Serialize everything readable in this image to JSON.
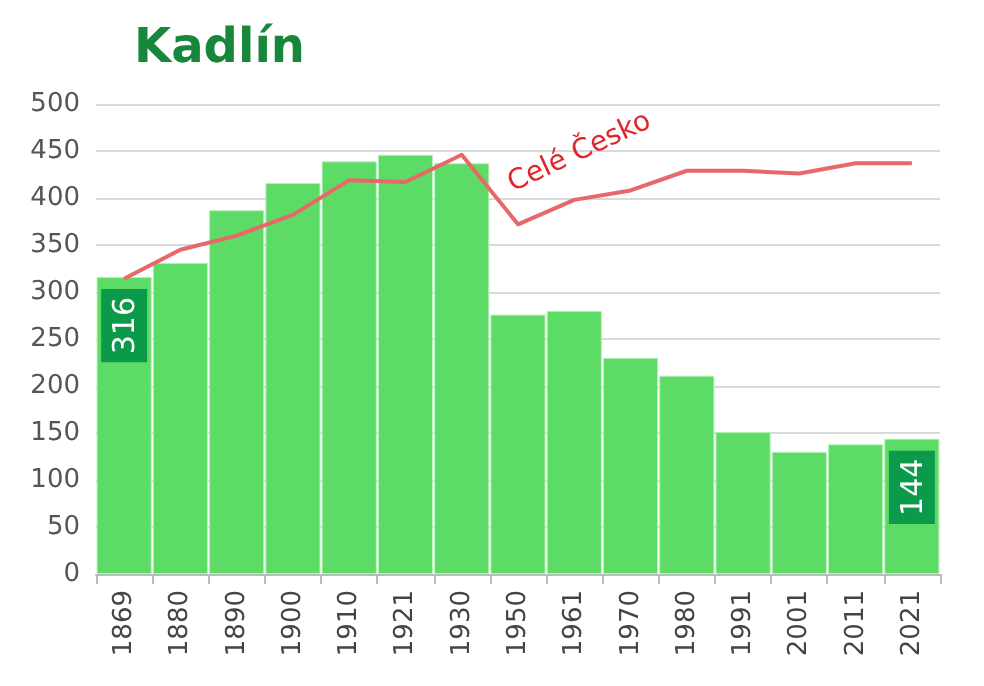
{
  "chart_data": {
    "type": "bar",
    "title": "Kadlín",
    "categories": [
      "1869",
      "1880",
      "1890",
      "1900",
      "1910",
      "1921",
      "1930",
      "1950",
      "1961",
      "1970",
      "1980",
      "1991",
      "2001",
      "2011",
      "2021"
    ],
    "series": [
      {
        "color": "#5ddb67",
        "values": [
          316,
          331,
          387,
          416,
          439,
          446,
          437,
          276,
          280,
          230,
          211,
          151,
          130,
          138,
          144
        ],
        "value_labels": [
          "316",
          null,
          null,
          null,
          null,
          null,
          null,
          null,
          null,
          null,
          null,
          null,
          null,
          null,
          "144"
        ]
      },
      {
        "type": "line",
        "name": "Celé Česko",
        "color": "#e8686a",
        "values": [
          314,
          345,
          360,
          382,
          419,
          417,
          446,
          372,
          398,
          408,
          429,
          429,
          426,
          437,
          437
        ]
      }
    ],
    "ylim": [
      0,
      500
    ],
    "yticks": [
      0,
      50,
      100,
      150,
      200,
      250,
      300,
      350,
      400,
      450,
      500
    ],
    "grid": "y",
    "marker": "none"
  }
}
